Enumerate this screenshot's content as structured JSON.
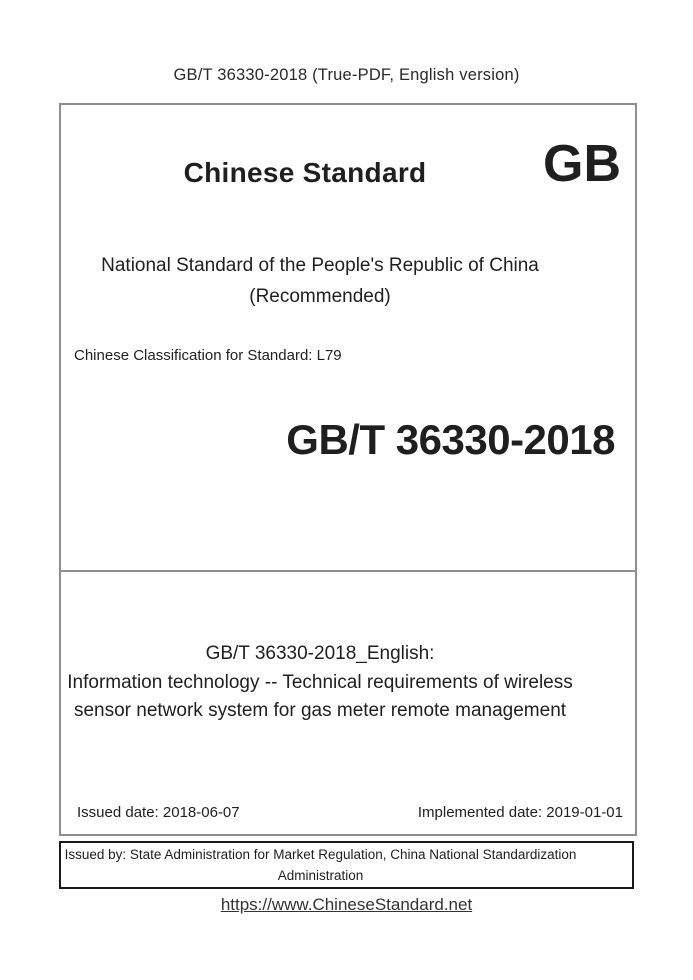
{
  "page": {
    "header_line": "GB/T 36330-2018 (True-PDF, English version)",
    "footer_link": "https://www.ChineseStandard.net"
  },
  "cover": {
    "brand_title": "Chinese Standard",
    "brand_logo": "GB",
    "national_line1": "National Standard of the People's Republic of China",
    "national_line2": "(Recommended)",
    "classification": "Chinese Classification for Standard: L79",
    "standard_number": "GB/T 36330-2018",
    "english_title_line1": "GB/T 36330-2018_English:",
    "english_title_line2": "Information technology -- Technical requirements of wireless",
    "english_title_line3": "sensor network system for gas meter remote management",
    "issued_date": "Issued date: 2018-06-07",
    "implemented_date": "Implemented date: 2019-01-01",
    "issued_by_line1": "Issued by: State Administration for Market Regulation, China National Standardization",
    "issued_by_line2": "Administration"
  },
  "colors": {
    "text": "#1f1f1f",
    "main_box_border": "#8e8e8e",
    "issued_box_border": "#1a1a1a",
    "link_text": "#333333"
  }
}
